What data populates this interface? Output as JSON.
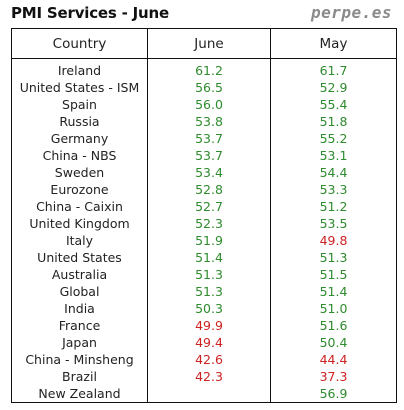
{
  "header": {
    "title": "PMI Services - June",
    "brand": "perpe.es"
  },
  "colors": {
    "expansion": "#2e8b2e",
    "contraction": "#cc2222",
    "border": "#111111"
  },
  "chart_data": {
    "type": "table",
    "title": "PMI Services - June",
    "columns": [
      "Country",
      "June",
      "May"
    ],
    "threshold": 50,
    "rows": [
      {
        "country": "Ireland",
        "june": "61.2",
        "may": "61.7"
      },
      {
        "country": "United States - ISM",
        "june": "56.5",
        "may": "52.9"
      },
      {
        "country": "Spain",
        "june": "56.0",
        "may": "55.4"
      },
      {
        "country": "Russia",
        "june": "53.8",
        "may": "51.8"
      },
      {
        "country": "Germany",
        "june": "53.7",
        "may": "55.2"
      },
      {
        "country": "China - NBS",
        "june": "53.7",
        "may": "53.1"
      },
      {
        "country": "Sweden",
        "june": "53.4",
        "may": "54.4"
      },
      {
        "country": "Eurozone",
        "june": "52.8",
        "may": "53.3"
      },
      {
        "country": "China - Caixin",
        "june": "52.7",
        "may": "51.2"
      },
      {
        "country": "United Kingdom",
        "june": "52.3",
        "may": "53.5"
      },
      {
        "country": "Italy",
        "june": "51.9",
        "may": "49.8"
      },
      {
        "country": "United States",
        "june": "51.4",
        "may": "51.3"
      },
      {
        "country": "Australia",
        "june": "51.3",
        "may": "51.5"
      },
      {
        "country": "Global",
        "june": "51.3",
        "may": "51.4"
      },
      {
        "country": "India",
        "june": "50.3",
        "may": "51.0"
      },
      {
        "country": "France",
        "june": "49.9",
        "may": "51.6"
      },
      {
        "country": "Japan",
        "june": "49.4",
        "may": "50.4"
      },
      {
        "country": "China - Minsheng",
        "june": "42.6",
        "may": "44.4"
      },
      {
        "country": "Brazil",
        "june": "42.3",
        "may": "37.3"
      },
      {
        "country": "New Zealand",
        "june": "",
        "may": "56.9"
      }
    ]
  }
}
